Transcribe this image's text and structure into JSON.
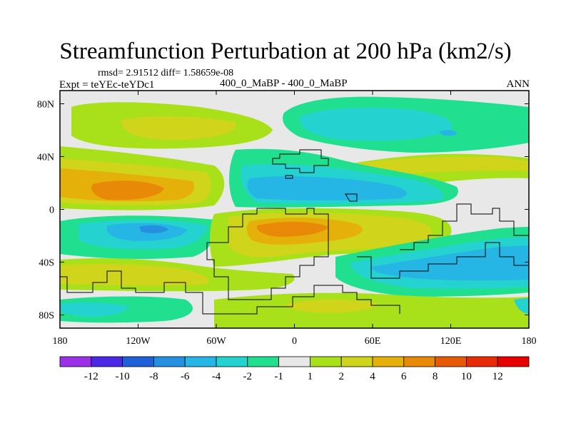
{
  "title": "Streamfunction Perturbation at 200 hPa (km2/s)",
  "subtitle": {
    "rmsd_line": "rmsd= 2.91512 diff= 1.58659e-08",
    "experiment": "Expt = teYEc-teYDc1",
    "center": "400_0_MaBP - 400_0_MaBP",
    "season": "ANN"
  },
  "chart_data": {
    "type": "filled-contour map",
    "title": "Streamfunction Perturbation at 200 hPa (km2/s)",
    "x_axis": {
      "range": [
        -180,
        180
      ],
      "ticks": [
        -180,
        -120,
        -60,
        0,
        60,
        120,
        180
      ],
      "tick_labels": [
        "180",
        "120W",
        "60W",
        "0",
        "60E",
        "120E",
        "180"
      ]
    },
    "y_axis": {
      "range": [
        -90,
        90
      ],
      "ticks": [
        80,
        40,
        0,
        -40,
        -80
      ],
      "tick_labels": [
        "80N",
        "40N",
        "0",
        "40S",
        "80S"
      ]
    },
    "colorbar": {
      "levels": [
        -12,
        -10,
        -8,
        -6,
        -4,
        -2,
        -1,
        1,
        2,
        4,
        6,
        8,
        10,
        12
      ],
      "tick_labels": [
        "-12",
        "-10",
        "-8",
        "-6",
        "-4",
        "-2",
        "-1",
        "1",
        "2",
        "4",
        "6",
        "8",
        "10",
        "12"
      ],
      "colors": [
        "#9b30e8",
        "#4b28e6",
        "#1f5fd8",
        "#2590e0",
        "#26b6e6",
        "#24d2d0",
        "#20e090",
        "#e8e8e8",
        "#a8e01a",
        "#d0d41a",
        "#e6b00a",
        "#e88a08",
        "#e65a06",
        "#e82a08",
        "#e80000"
      ]
    },
    "features": [
      {
        "band": "north 60N-80N",
        "pattern": "positive (+2 to +4) over 150W-90W, negative (-2 to -6) over 20W-60E"
      },
      {
        "band": "north 20N-40N",
        "pattern": "positive (+4 to +8) over 180-120W, negative (-2 to -6) over 60W-100E"
      },
      {
        "band": "south 10S-40S",
        "pattern": "negative (-4 to -6) near 150W, positive (+4 to +8) over 60W-90E"
      },
      {
        "band": "south 40S-60S",
        "pattern": "negative (-2 to -6) over 30E-180, positive (+2 to +4) near 150W"
      }
    ]
  },
  "colors": {
    "background": "#ffffff",
    "missing": "#e8e8e8"
  }
}
